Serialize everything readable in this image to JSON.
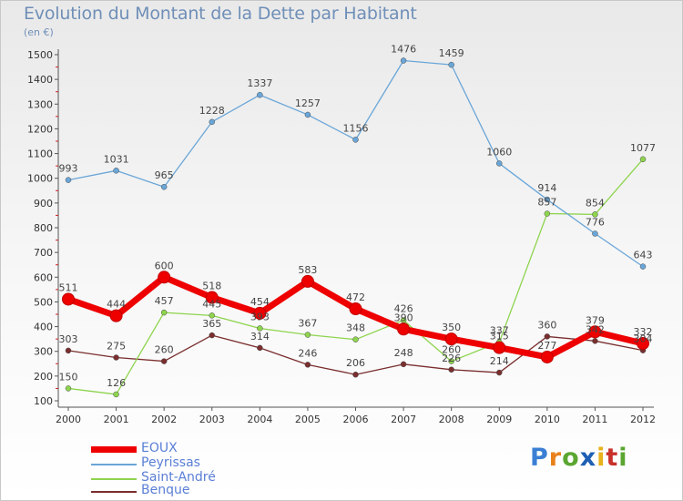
{
  "header": {
    "title": "Evolution du Montant de la Dette par Habitant",
    "unit": "(en €)"
  },
  "logo": {
    "text": "Proxiti",
    "letters": [
      "P",
      "r",
      "o",
      "x",
      "i",
      "t",
      "i"
    ]
  },
  "chart_data": {
    "type": "line",
    "title": "Evolution du Montant de la Dette par Habitant",
    "ylabel": "(en €)",
    "xlabel": "",
    "x": [
      "2000",
      "2001",
      "2002",
      "2003",
      "2004",
      "2005",
      "2006",
      "2007",
      "2008",
      "2009",
      "2010",
      "2011",
      "2012"
    ],
    "ylim": [
      100,
      1500
    ],
    "yticks": [
      100,
      200,
      300,
      400,
      500,
      600,
      700,
      800,
      900,
      1000,
      1100,
      1200,
      1300,
      1400,
      1500
    ],
    "grid": false,
    "legend": "bottom-left",
    "series": [
      {
        "name": "Benque",
        "color": "#7a2e2e",
        "values": [
          303,
          275,
          260,
          365,
          314,
          246,
          206,
          248,
          226,
          214,
          360,
          342,
          304
        ],
        "labels": [
          "303",
          "275",
          "260",
          "365",
          "314",
          "246",
          "206",
          "248",
          "226",
          "214",
          "360",
          "342",
          "304"
        ]
      },
      {
        "name": "Saint-André",
        "color": "#8ed44e",
        "values": [
          150,
          126,
          457,
          445,
          393,
          367,
          348,
          426,
          260,
          337,
          857,
          854,
          1077
        ],
        "labels": [
          "150",
          "126",
          "457",
          "445",
          "393",
          "367",
          "348",
          "426",
          "260",
          "337",
          "857",
          "854",
          "1077"
        ]
      },
      {
        "name": "Peyrissas",
        "color": "#6aa6d8",
        "values": [
          993,
          1031,
          965,
          1228,
          1337,
          1257,
          1156,
          1476,
          1459,
          1060,
          914,
          776,
          643
        ],
        "labels": [
          "993",
          "1031",
          "965",
          "1228",
          "1337",
          "1257",
          "1156",
          "1476",
          "1459",
          "1060",
          "914",
          "776",
          "643"
        ]
      },
      {
        "name": "EOUX",
        "color": "#ee0000",
        "values": [
          511,
          444,
          600,
          518,
          454,
          583,
          472,
          390,
          350,
          315,
          277,
          379,
          332
        ],
        "labels": [
          "511",
          "444",
          "600",
          "518",
          "454",
          "583",
          "472",
          "390",
          "350",
          "315",
          "277",
          "379",
          "332"
        ]
      }
    ]
  },
  "legend": {
    "items": [
      {
        "label": "EOUX",
        "color": "#ee0000"
      },
      {
        "label": "Peyrissas",
        "color": "#6aa6d8"
      },
      {
        "label": "Saint-André",
        "color": "#8ed44e"
      },
      {
        "label": "Benque",
        "color": "#7a2e2e"
      }
    ]
  }
}
